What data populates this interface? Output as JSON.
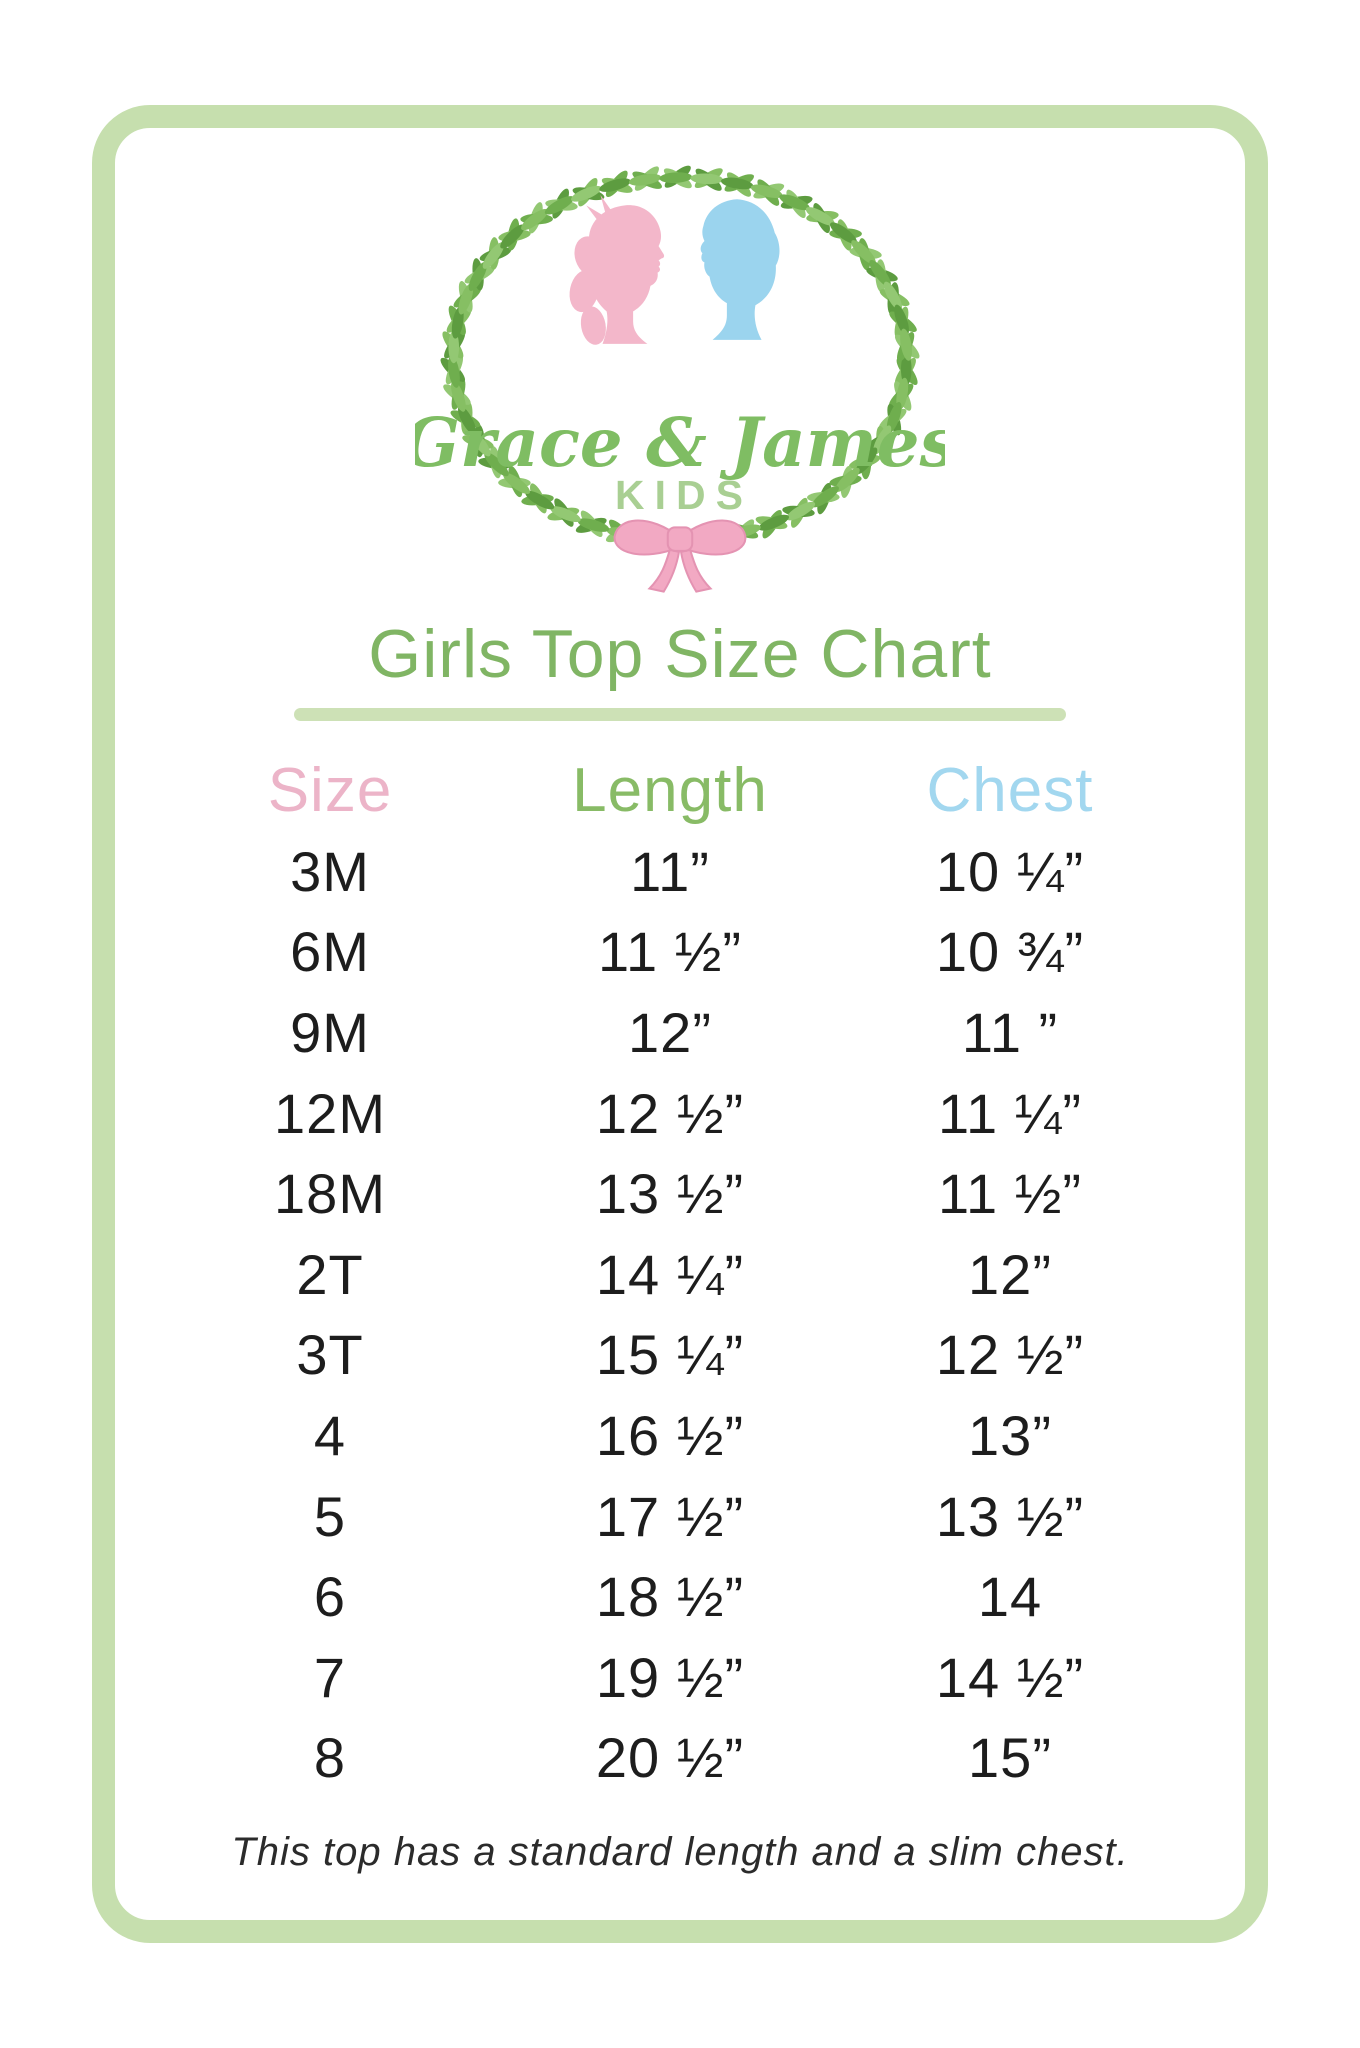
{
  "logo": {
    "brand_script": "Grace & James",
    "brand_sub": "KIDS",
    "icons": [
      "laurel-wreath",
      "girl-silhouette",
      "boy-silhouette",
      "pink-bow"
    ]
  },
  "title": "Girls Top Size Chart",
  "table": {
    "columns": [
      {
        "label": "Size",
        "color": "#ecb4c8"
      },
      {
        "label": "Length",
        "color": "#88bb66"
      },
      {
        "label": "Chest",
        "color": "#a2d7ef"
      }
    ],
    "rows": [
      {
        "size": "3M",
        "length": "11”",
        "chest": "10 ¼”"
      },
      {
        "size": "6M",
        "length": "11 ½”",
        "chest": "10 ¾”"
      },
      {
        "size": "9M",
        "length": "12”",
        "chest": "11 ”"
      },
      {
        "size": "12M",
        "length": "12 ½”",
        "chest": "11 ¼”"
      },
      {
        "size": "18M",
        "length": "13 ½”",
        "chest": "11 ½”"
      },
      {
        "size": "2T",
        "length": "14 ¼”",
        "chest": "12”"
      },
      {
        "size": "3T",
        "length": "15 ¼”",
        "chest": "12 ½”"
      },
      {
        "size": "4",
        "length": "16 ½”",
        "chest": "13”"
      },
      {
        "size": "5",
        "length": "17 ½”",
        "chest": "13 ½”"
      },
      {
        "size": "6",
        "length": "18 ½”",
        "chest": "14"
      },
      {
        "size": "7",
        "length": "19 ½”",
        "chest": "14 ½”"
      },
      {
        "size": "8",
        "length": "20 ½”",
        "chest": "15”"
      }
    ]
  },
  "footer_note": "This top has a standard length and a slim chest.",
  "colors": {
    "border_green": "#c6dfae",
    "title_green": "#80b564",
    "header_pink": "#ecb4c8",
    "header_green": "#88bb66",
    "header_blue": "#a2d7ef",
    "wreath_green": "#6fae4e",
    "script_green": "#7fbd63",
    "kids_green": "#a9cf93",
    "girl_pink": "#f3b7ca",
    "boy_blue": "#9bd4ee",
    "bow_pink": "#f2a9c3",
    "body_text": "#1d1d1d"
  }
}
